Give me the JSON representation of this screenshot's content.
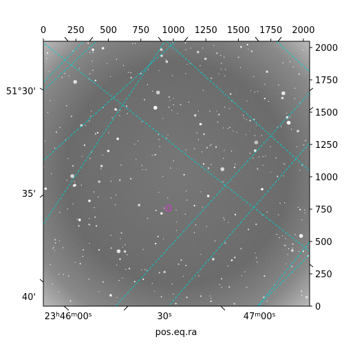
{
  "chart_data": {
    "type": "image",
    "xlabel": "pos.eq.ra",
    "xlim": [
      0,
      2048
    ],
    "ylim": [
      0,
      2048
    ],
    "pixel_axis_top": {
      "ticks": [
        0,
        250,
        500,
        750,
        1000,
        1250,
        1500,
        1750,
        2000
      ],
      "labels": [
        "0",
        "250",
        "500",
        "750",
        "1000",
        "1250",
        "1500",
        "1750",
        "2000"
      ]
    },
    "pixel_axis_right": {
      "ticks": [
        0,
        250,
        500,
        750,
        1000,
        1250,
        1500,
        1750,
        2000
      ],
      "labels": [
        "0",
        "250",
        "500",
        "750",
        "1000",
        "1250",
        "1500",
        "1750",
        "2000"
      ]
    },
    "ra_labels": [
      "23h46m00s",
      "30s",
      "47m00s"
    ],
    "dec_labels": [
      "51°30'",
      "35'",
      "40'"
    ],
    "grid": true,
    "colors": {
      "grid": "#00d0d0",
      "marker": "#c040c0",
      "frame": "#000000"
    },
    "marker": {
      "x": 962,
      "y": 758,
      "shape": "circle"
    },
    "image_description_tags": [
      "grayscale-starfield"
    ]
  }
}
